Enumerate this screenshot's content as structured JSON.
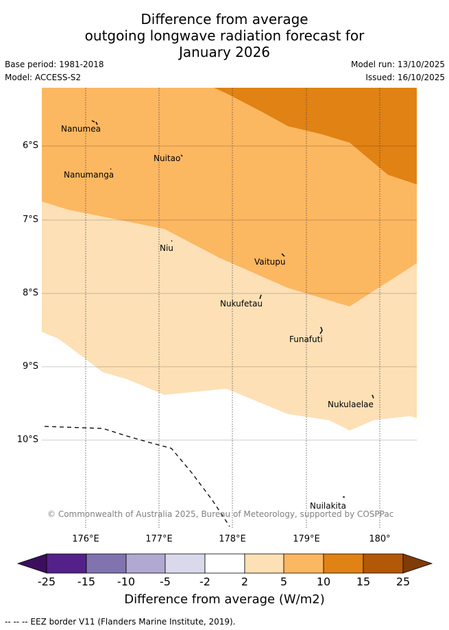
{
  "title": {
    "line1": "Difference from average",
    "line2": "outgoing longwave radiation forecast for",
    "line3": "January 2026"
  },
  "meta": {
    "base_period": "Base period: 1981-2018",
    "model": "Model: ACCESS-S2",
    "model_run": "Model run: 13/10/2025",
    "issued": "Issued: 16/10/2025"
  },
  "map": {
    "lat_labels": [
      "6°S",
      "7°S",
      "8°S",
      "9°S",
      "10°S"
    ],
    "lon_labels": [
      "176°E",
      "177°E",
      "178°E",
      "179°E",
      "180°"
    ],
    "places": {
      "nanumea": "Nanumea",
      "nuitao": "Nuitao",
      "nanumanga": "Nanumanga",
      "niu": "Niu",
      "vaitupu": "Vaitupu",
      "nukufetau": "Nukufetau",
      "funafuti": "Funafuti",
      "nukulaelae": "Nukulaelae",
      "nuilakita": "Nuilakita"
    },
    "copyright": "© Commonwealth of Australia 2025, Bureau of Meteorology, supported by COSPPac"
  },
  "colorbar": {
    "ticks": [
      "-25",
      "-15",
      "-10",
      "-5",
      "-2",
      "2",
      "5",
      "10",
      "15",
      "25"
    ],
    "colors": [
      "#3b0f5e",
      "#54218a",
      "#8173ae",
      "#b1a9d1",
      "#d9d9eb",
      "#ffffff",
      "#fde0b6",
      "#fcb761",
      "#e08214",
      "#b35806",
      "#7f3b08"
    ],
    "label": "Difference from average (W/m2)"
  },
  "footnote": "-- -- -- EEZ border V11 (Flanders Marine Institute, 2019)."
}
